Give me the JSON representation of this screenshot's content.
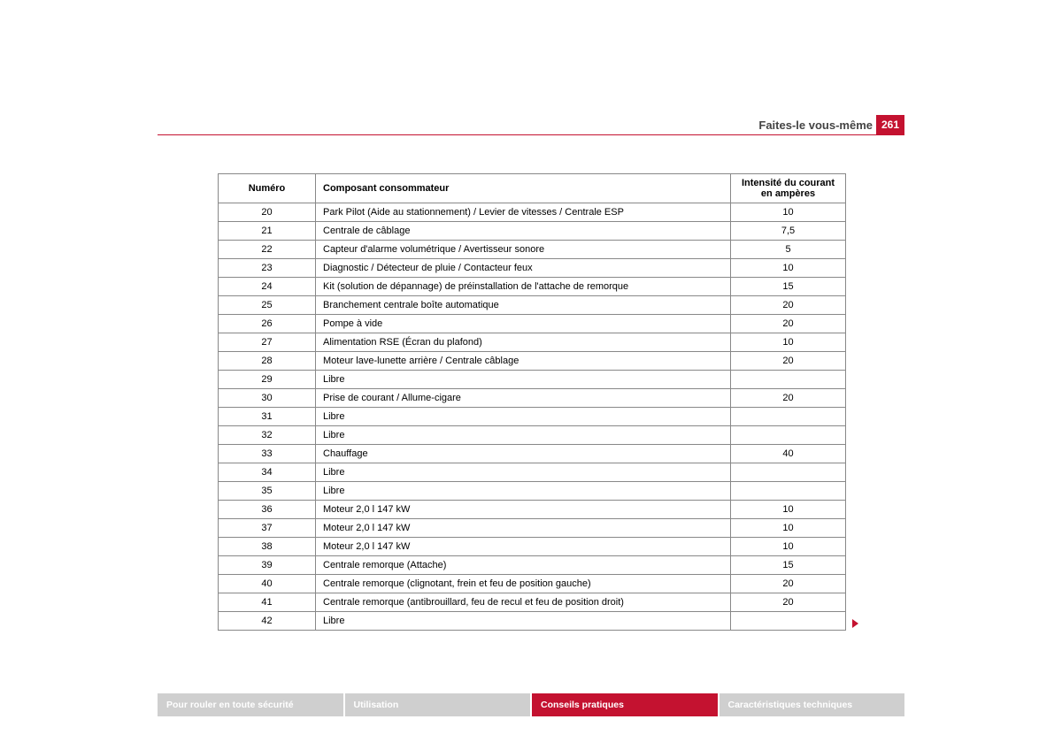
{
  "header": {
    "section_title": "Faites-le vous-même",
    "page_number": "261"
  },
  "table": {
    "columns": [
      "Numéro",
      "Composant consommateur",
      "Intensité du courant en ampères"
    ],
    "rows": [
      [
        "20",
        "Park Pilot (Aide au stationnement) / Levier de vitesses / Centrale ESP",
        "10"
      ],
      [
        "21",
        "Centrale de câblage",
        "7,5"
      ],
      [
        "22",
        "Capteur d'alarme volumétrique / Avertisseur sonore",
        "5"
      ],
      [
        "23",
        "Diagnostic / Détecteur de pluie / Contacteur feux",
        "10"
      ],
      [
        "24",
        "Kit (solution de dépannage) de préinstallation de l'attache de remorque",
        "15"
      ],
      [
        "25",
        "Branchement centrale boîte automatique",
        "20"
      ],
      [
        "26",
        "Pompe à vide",
        "20"
      ],
      [
        "27",
        "Alimentation RSE (Écran du plafond)",
        "10"
      ],
      [
        "28",
        "Moteur lave-lunette arrière / Centrale câblage",
        "20"
      ],
      [
        "29",
        "Libre",
        ""
      ],
      [
        "30",
        "Prise de courant / Allume-cigare",
        "20"
      ],
      [
        "31",
        "Libre",
        ""
      ],
      [
        "32",
        "Libre",
        ""
      ],
      [
        "33",
        "Chauffage",
        "40"
      ],
      [
        "34",
        "Libre",
        ""
      ],
      [
        "35",
        "Libre",
        ""
      ],
      [
        "36",
        "Moteur 2,0 l 147 kW",
        "10"
      ],
      [
        "37",
        "Moteur 2,0 l 147 kW",
        "10"
      ],
      [
        "38",
        "Moteur 2,0 l 147 kW",
        "10"
      ],
      [
        "39",
        "Centrale remorque (Attache)",
        "15"
      ],
      [
        "40",
        "Centrale remorque (clignotant, frein et feu de position gauche)",
        "20"
      ],
      [
        "41",
        "Centrale remorque (antibrouillard, feu de recul et feu de position droit)",
        "20"
      ],
      [
        "42",
        "Libre",
        ""
      ]
    ]
  },
  "tabs": {
    "items": [
      {
        "label": "Pour rouler en toute sécurité",
        "active": false
      },
      {
        "label": "Utilisation",
        "active": false
      },
      {
        "label": "Conseils pratiques",
        "active": true
      },
      {
        "label": "Caractéristiques techniques",
        "active": false
      }
    ]
  },
  "colors": {
    "accent": "#c41230",
    "tab_inactive": "#cfcfcf",
    "border": "#888888",
    "text": "#333333"
  }
}
